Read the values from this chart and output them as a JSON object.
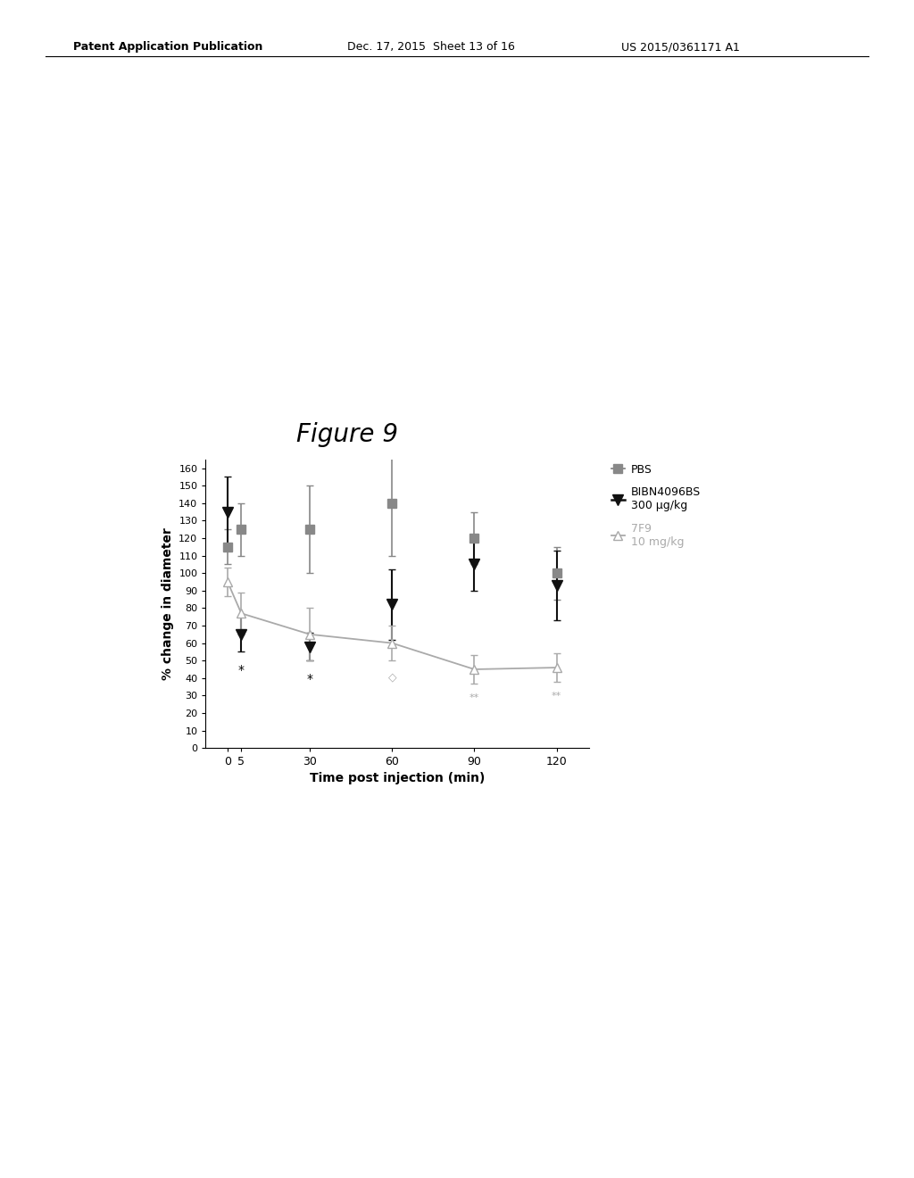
{
  "title": "Figure 9",
  "xlabel": "Time post injection (min)",
  "ylabel": "% change in diameter",
  "x": [
    0,
    5,
    30,
    60,
    90,
    120
  ],
  "pbs_y": [
    115,
    125,
    125,
    140,
    120,
    100
  ],
  "pbs_yerr": [
    10,
    15,
    25,
    30,
    15,
    15
  ],
  "bibn_y": [
    135,
    65,
    58,
    82,
    105,
    93
  ],
  "bibn_yerr": [
    20,
    10,
    8,
    20,
    15,
    20
  ],
  "fg9_y": [
    95,
    77,
    65,
    60,
    45,
    46
  ],
  "fg9_yerr": [
    8,
    12,
    15,
    10,
    8,
    8
  ],
  "ylim": [
    0,
    165
  ],
  "yticks": [
    0,
    10,
    20,
    30,
    40,
    50,
    60,
    70,
    80,
    90,
    100,
    110,
    120,
    130,
    140,
    150,
    160
  ],
  "pbs_color": "#888888",
  "bibn_color": "#111111",
  "fg9_color": "#aaaaaa",
  "header_left": "Patent Application Publication",
  "header_mid": "Dec. 17, 2015  Sheet 13 of 16",
  "header_right": "US 2015/0361171 A1",
  "fig_title": "Figure 9",
  "legend_pbs": "PBS",
  "legend_bibn": "BIBN4096BS\n300 μg/kg",
  "legend_fg9": "7F9\n10 mg/kg"
}
